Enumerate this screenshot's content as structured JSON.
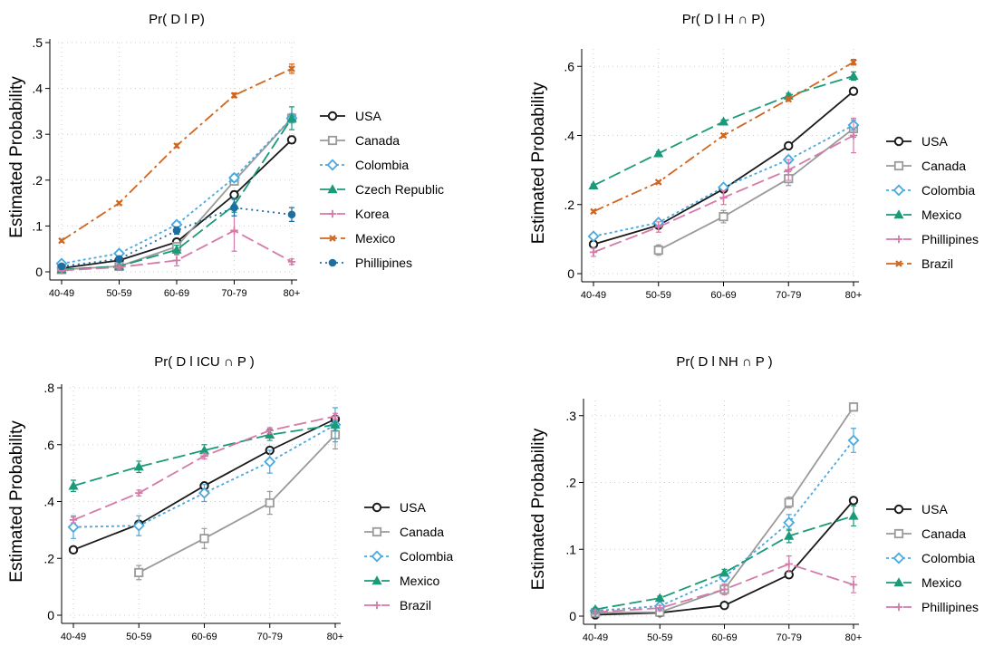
{
  "colors": {
    "USA": "#1a1a1a",
    "Canada": "#9a9a9a",
    "Colombia": "#4aa8dd",
    "Czech Republic": "#1a9a78",
    "Korea": "#d47aa8",
    "Mexico": "#d0651e",
    "Mexico_green": "#1a9a78",
    "Phillipines": "#1f6ea0",
    "Phillipines_pink": "#d47aa8",
    "Brazil": "#d0651e",
    "Brazil_pink": "#d47aa8"
  },
  "chart_data": [
    {
      "type": "line",
      "title": "Pr( D l  P)",
      "ylabel": "Estimated Probability",
      "categories": [
        "40-49",
        "50-59",
        "60-69",
        "70-79",
        "80+"
      ],
      "yticks": [
        0,
        0.1,
        0.2,
        0.3,
        0.4,
        0.5
      ],
      "ytick_labels": [
        "0",
        ".1",
        ".2",
        ".3",
        ".4",
        ".5"
      ],
      "ylim": [
        0,
        0.5
      ],
      "grid": true,
      "legend": "right",
      "series": [
        {
          "name": "USA",
          "color": "#1a1a1a",
          "marker": "circle",
          "dash": "",
          "values": [
            0.008,
            0.025,
            0.065,
            0.168,
            0.288
          ],
          "err": [
            0.003,
            0.004,
            0.006,
            0.008,
            0.008
          ]
        },
        {
          "name": "Canada",
          "color": "#9a9a9a",
          "marker": "square",
          "dash": "",
          "values": [
            0.005,
            0.012,
            0.055,
            0.198,
            0.335
          ],
          "err": [
            0.002,
            0.003,
            0.006,
            0.008,
            0.01
          ]
        },
        {
          "name": "Colombia",
          "color": "#4aa8dd",
          "marker": "diamond",
          "dash": "3,3",
          "values": [
            0.018,
            0.04,
            0.103,
            0.205,
            0.335
          ],
          "err": [
            0.003,
            0.004,
            0.006,
            0.008,
            0.01
          ]
        },
        {
          "name": "Czech Republic",
          "color": "#1a9a78",
          "marker": "triangle",
          "dash": "14,5",
          "values": [
            0.005,
            0.012,
            0.048,
            0.145,
            0.335
          ],
          "err": [
            0.002,
            0.004,
            0.01,
            0.015,
            0.025
          ]
        },
        {
          "name": "Korea",
          "color": "#d47aa8",
          "marker": "plus",
          "dash": "14,5",
          "values": [
            0.003,
            0.01,
            0.025,
            0.09,
            0.022
          ],
          "err": [
            0.002,
            0.004,
            0.012,
            0.045,
            0.006
          ]
        },
        {
          "name": "Mexico",
          "color": "#d0651e",
          "marker": "x",
          "dash": "12,4,3,4",
          "values": [
            0.068,
            0.15,
            0.275,
            0.385,
            0.443
          ],
          "err": [
            0.003,
            0.003,
            0.004,
            0.005,
            0.01
          ]
        },
        {
          "name": "Phillipines",
          "color": "#1f6ea0",
          "marker": "dot",
          "dash": "2,4",
          "values": [
            0.012,
            0.028,
            0.09,
            0.14,
            0.125
          ],
          "err": [
            0.004,
            0.006,
            0.008,
            0.018,
            0.015
          ]
        }
      ]
    },
    {
      "type": "line",
      "title": "Pr( D l H ∩ P)",
      "ylabel": "Estimated Probability",
      "categories": [
        "40-49",
        "50-59",
        "60-69",
        "70-79",
        "80+"
      ],
      "yticks": [
        0,
        0.2,
        0.4,
        0.6
      ],
      "ytick_labels": [
        "0",
        ".2",
        ".4",
        ".6"
      ],
      "ylim": [
        0,
        0.64
      ],
      "grid": true,
      "legend": "right",
      "series": [
        {
          "name": "USA",
          "color": "#1a1a1a",
          "marker": "circle",
          "dash": "",
          "values": [
            0.085,
            0.14,
            0.245,
            0.37,
            0.528
          ],
          "err": [
            0.004,
            0.005,
            0.006,
            0.008,
            0.008
          ]
        },
        {
          "name": "Canada",
          "color": "#9a9a9a",
          "marker": "square",
          "dash": "",
          "values": [
            null,
            0.068,
            0.165,
            0.275,
            0.42
          ],
          "err": [
            0,
            0.015,
            0.018,
            0.02,
            0.025
          ]
        },
        {
          "name": "Colombia",
          "color": "#4aa8dd",
          "marker": "diamond",
          "dash": "3,3",
          "values": [
            0.108,
            0.148,
            0.25,
            0.33,
            0.43
          ],
          "err": [
            0.005,
            0.006,
            0.008,
            0.01,
            0.015
          ]
        },
        {
          "name": "Mexico",
          "color": "#1a9a78",
          "marker": "triangle",
          "dash": "14,5",
          "values": [
            0.255,
            0.348,
            0.44,
            0.515,
            0.572
          ],
          "err": [
            0.004,
            0.005,
            0.005,
            0.007,
            0.012
          ]
        },
        {
          "name": "Phillipines",
          "color": "#d47aa8",
          "marker": "plus",
          "dash": "14,5",
          "values": [
            0.062,
            0.135,
            0.22,
            0.3,
            0.4
          ],
          "err": [
            0.012,
            0.015,
            0.02,
            0.03,
            0.05
          ]
        },
        {
          "name": "Brazil",
          "color": "#d0651e",
          "marker": "x",
          "dash": "12,4,3,4",
          "values": [
            0.18,
            0.265,
            0.4,
            0.505,
            0.612
          ],
          "err": [
            0.004,
            0.004,
            0.005,
            0.006,
            0.008
          ]
        }
      ]
    },
    {
      "type": "line",
      "title": "Pr( D l ICU ∩ P )",
      "ylabel": "Estimated Probability",
      "categories": [
        "40-49",
        "50-59",
        "60-69",
        "70-79",
        "80+"
      ],
      "yticks": [
        0,
        0.2,
        0.4,
        0.6,
        0.8
      ],
      "ytick_labels": [
        "0",
        ".2",
        ".4",
        ".6",
        ".8"
      ],
      "ylim": [
        0,
        0.8
      ],
      "grid": true,
      "legend": "right",
      "series": [
        {
          "name": "USA",
          "color": "#1a1a1a",
          "marker": "circle",
          "dash": "",
          "values": [
            0.23,
            0.32,
            0.455,
            0.58,
            0.69
          ],
          "err": [
            0.01,
            0.01,
            0.01,
            0.01,
            0.01
          ]
        },
        {
          "name": "Canada",
          "color": "#9a9a9a",
          "marker": "square",
          "dash": "",
          "values": [
            null,
            0.15,
            0.27,
            0.395,
            0.635
          ],
          "err": [
            0,
            0.025,
            0.035,
            0.04,
            0.05
          ]
        },
        {
          "name": "Colombia",
          "color": "#4aa8dd",
          "marker": "diamond",
          "dash": "3,3",
          "values": [
            0.31,
            0.315,
            0.43,
            0.54,
            0.67
          ],
          "err": [
            0.04,
            0.035,
            0.03,
            0.04,
            0.06
          ]
        },
        {
          "name": "Mexico",
          "color": "#1a9a78",
          "marker": "triangle",
          "dash": "14,5",
          "values": [
            0.455,
            0.522,
            0.58,
            0.635,
            0.67
          ],
          "err": [
            0.02,
            0.02,
            0.02,
            0.02,
            0.02
          ]
        },
        {
          "name": "Brazil",
          "color": "#d47aa8",
          "marker": "plus",
          "dash": "14,5",
          "values": [
            0.335,
            0.43,
            0.56,
            0.65,
            0.7
          ],
          "err": [
            0.01,
            0.01,
            0.01,
            0.01,
            0.01
          ]
        }
      ]
    },
    {
      "type": "line",
      "title": "Pr( D l NH ∩ P )",
      "ylabel": "Estimated Probability",
      "categories": [
        "40-49",
        "50-59",
        "60-69",
        "70-79",
        "80+"
      ],
      "yticks": [
        0,
        0.1,
        0.2,
        0.3
      ],
      "ytick_labels": [
        "0",
        ".1",
        ".2",
        ".3"
      ],
      "ylim": [
        0,
        0.32
      ],
      "grid": true,
      "legend": "right",
      "series": [
        {
          "name": "USA",
          "color": "#1a1a1a",
          "marker": "circle",
          "dash": "",
          "values": [
            0.002,
            0.005,
            0.016,
            0.062,
            0.173
          ],
          "err": [
            0.001,
            0.001,
            0.002,
            0.003,
            0.004
          ]
        },
        {
          "name": "Canada",
          "color": "#9a9a9a",
          "marker": "square",
          "dash": "",
          "values": [
            0.005,
            0.006,
            0.04,
            0.17,
            0.313
          ],
          "err": [
            0.002,
            0.002,
            0.005,
            0.008,
            0.006
          ]
        },
        {
          "name": "Colombia",
          "color": "#4aa8dd",
          "marker": "diamond",
          "dash": "3,3",
          "values": [
            0.008,
            0.015,
            0.058,
            0.14,
            0.263
          ],
          "err": [
            0.002,
            0.003,
            0.006,
            0.012,
            0.018
          ]
        },
        {
          "name": "Mexico",
          "color": "#1a9a78",
          "marker": "triangle",
          "dash": "14,5",
          "values": [
            0.01,
            0.027,
            0.065,
            0.12,
            0.15
          ],
          "err": [
            0.002,
            0.003,
            0.005,
            0.01,
            0.015
          ]
        },
        {
          "name": "Phillipines",
          "color": "#d47aa8",
          "marker": "plus",
          "dash": "14,5",
          "values": [
            0.006,
            0.012,
            0.04,
            0.078,
            0.047
          ],
          "err": [
            0.003,
            0.004,
            0.008,
            0.012,
            0.012
          ]
        }
      ]
    }
  ]
}
